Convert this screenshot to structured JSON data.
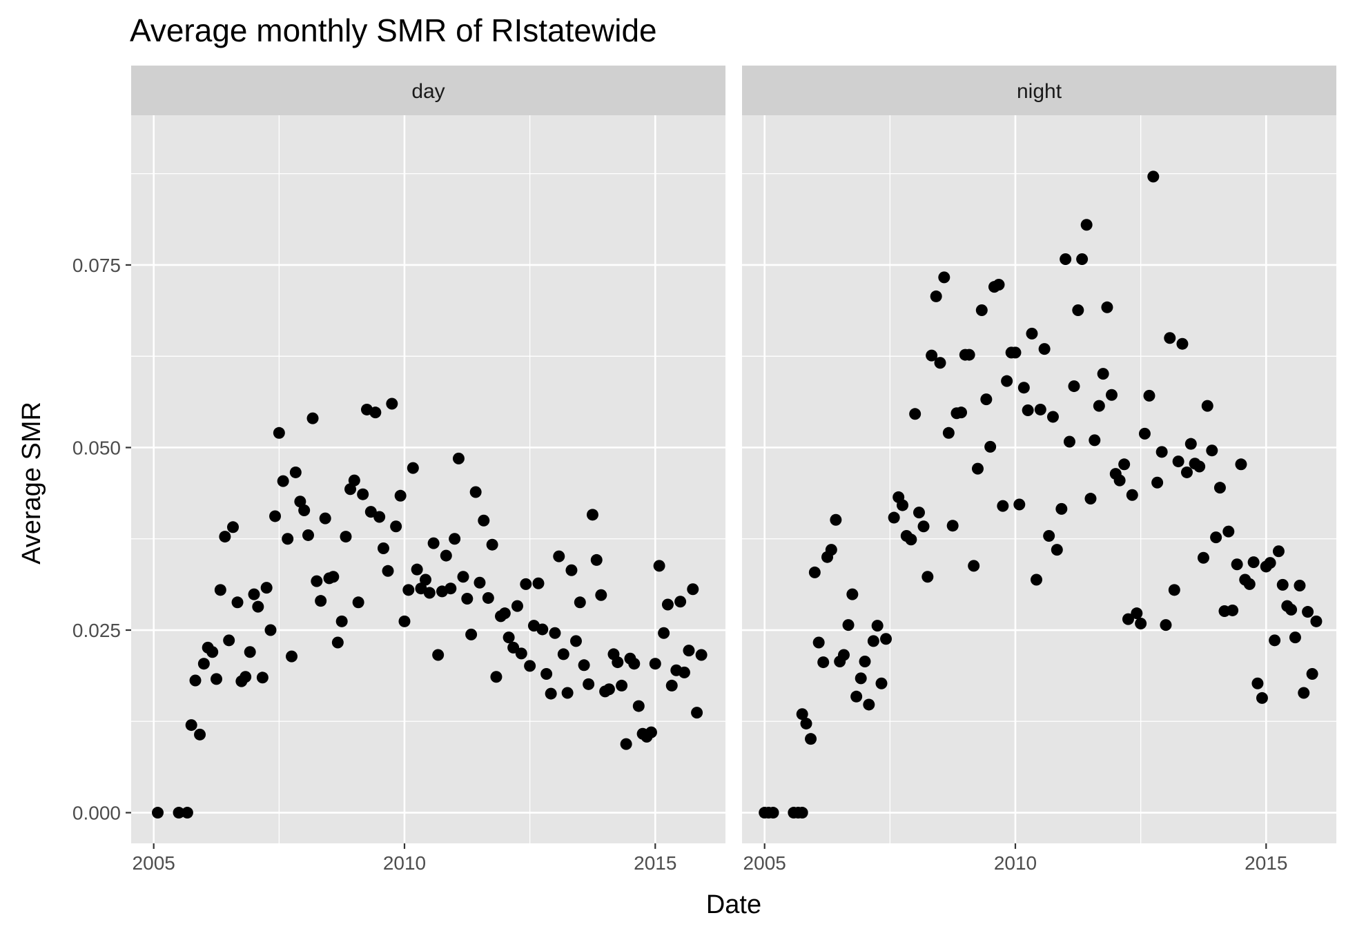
{
  "chart_data": {
    "type": "scatter",
    "title": "Average monthly SMR of RIstatewide",
    "xlabel": "Date",
    "ylabel": "Average SMR",
    "xlim": [
      2004.55,
      2016.4
    ],
    "ylim": [
      -0.0042,
      0.0955
    ],
    "xticks": [
      2005,
      2010,
      2015
    ],
    "xtick_labels": [
      "2005",
      "2010",
      "2015"
    ],
    "yticks": [
      0.0,
      0.025,
      0.05,
      0.075
    ],
    "ytick_labels": [
      "0.000",
      "0.025",
      "0.050",
      "0.075"
    ],
    "grid": true,
    "legend": "none",
    "colors": {
      "panel_bg": "#e5e5e5",
      "strip_bg": "#d0d0d0",
      "grid": "#ffffff",
      "point": "#000000",
      "tick": "#333333"
    },
    "facets": [
      {
        "name": "day",
        "points": [
          [
            2005.08,
            0.0
          ],
          [
            2005.5,
            0.0
          ],
          [
            2005.67,
            0.0
          ],
          [
            2005.75,
            0.012
          ],
          [
            2005.83,
            0.0181
          ],
          [
            2005.92,
            0.0107
          ],
          [
            2006.0,
            0.0204
          ],
          [
            2006.08,
            0.0226
          ],
          [
            2006.17,
            0.022
          ],
          [
            2006.25,
            0.0183
          ],
          [
            2006.33,
            0.0305
          ],
          [
            2006.42,
            0.0378
          ],
          [
            2006.5,
            0.0236
          ],
          [
            2006.58,
            0.0391
          ],
          [
            2006.67,
            0.0288
          ],
          [
            2006.75,
            0.018
          ],
          [
            2006.83,
            0.0186
          ],
          [
            2006.92,
            0.022
          ],
          [
            2007.0,
            0.0299
          ],
          [
            2007.08,
            0.0282
          ],
          [
            2007.17,
            0.0185
          ],
          [
            2007.25,
            0.0308
          ],
          [
            2007.33,
            0.025
          ],
          [
            2007.42,
            0.0406
          ],
          [
            2007.5,
            0.052
          ],
          [
            2007.58,
            0.0454
          ],
          [
            2007.67,
            0.0375
          ],
          [
            2007.75,
            0.0214
          ],
          [
            2007.83,
            0.0466
          ],
          [
            2007.92,
            0.0426
          ],
          [
            2008.0,
            0.0414
          ],
          [
            2008.08,
            0.038
          ],
          [
            2008.17,
            0.054
          ],
          [
            2008.25,
            0.0317
          ],
          [
            2008.33,
            0.029
          ],
          [
            2008.42,
            0.0403
          ],
          [
            2008.5,
            0.0321
          ],
          [
            2008.58,
            0.0323
          ],
          [
            2008.67,
            0.0233
          ],
          [
            2008.75,
            0.0262
          ],
          [
            2008.83,
            0.0378
          ],
          [
            2008.92,
            0.0443
          ],
          [
            2009.0,
            0.0455
          ],
          [
            2009.08,
            0.0288
          ],
          [
            2009.17,
            0.0436
          ],
          [
            2009.25,
            0.0552
          ],
          [
            2009.33,
            0.0412
          ],
          [
            2009.42,
            0.0548
          ],
          [
            2009.5,
            0.0405
          ],
          [
            2009.58,
            0.0362
          ],
          [
            2009.67,
            0.0331
          ],
          [
            2009.75,
            0.056
          ],
          [
            2009.83,
            0.0392
          ],
          [
            2009.92,
            0.0434
          ],
          [
            2010.0,
            0.0262
          ],
          [
            2010.08,
            0.0305
          ],
          [
            2010.17,
            0.0472
          ],
          [
            2010.25,
            0.0333
          ],
          [
            2010.33,
            0.0307
          ],
          [
            2010.42,
            0.0319
          ],
          [
            2010.5,
            0.0301
          ],
          [
            2010.58,
            0.0369
          ],
          [
            2010.67,
            0.0216
          ],
          [
            2010.75,
            0.0303
          ],
          [
            2010.83,
            0.0352
          ],
          [
            2010.92,
            0.0307
          ],
          [
            2011.0,
            0.0375
          ],
          [
            2011.08,
            0.0485
          ],
          [
            2011.17,
            0.0323
          ],
          [
            2011.25,
            0.0293
          ],
          [
            2011.33,
            0.0244
          ],
          [
            2011.42,
            0.0439
          ],
          [
            2011.5,
            0.0315
          ],
          [
            2011.58,
            0.04
          ],
          [
            2011.67,
            0.0294
          ],
          [
            2011.75,
            0.0367
          ],
          [
            2011.83,
            0.0186
          ],
          [
            2011.92,
            0.0269
          ],
          [
            2012.0,
            0.0273
          ],
          [
            2012.08,
            0.024
          ],
          [
            2012.17,
            0.0226
          ],
          [
            2012.25,
            0.0283
          ],
          [
            2012.33,
            0.0218
          ],
          [
            2012.42,
            0.0313
          ],
          [
            2012.5,
            0.0201
          ],
          [
            2012.58,
            0.0256
          ],
          [
            2012.67,
            0.0314
          ],
          [
            2012.75,
            0.0251
          ],
          [
            2012.83,
            0.019
          ],
          [
            2012.92,
            0.0163
          ],
          [
            2013.0,
            0.0246
          ],
          [
            2013.08,
            0.0351
          ],
          [
            2013.17,
            0.0217
          ],
          [
            2013.25,
            0.0164
          ],
          [
            2013.33,
            0.0332
          ],
          [
            2013.42,
            0.0235
          ],
          [
            2013.5,
            0.0288
          ],
          [
            2013.58,
            0.0202
          ],
          [
            2013.67,
            0.0176
          ],
          [
            2013.75,
            0.0408
          ],
          [
            2013.83,
            0.0346
          ],
          [
            2013.92,
            0.0298
          ],
          [
            2014.0,
            0.0166
          ],
          [
            2014.08,
            0.0169
          ],
          [
            2014.17,
            0.0217
          ],
          [
            2014.25,
            0.0206
          ],
          [
            2014.33,
            0.0174
          ],
          [
            2014.42,
            0.0094
          ],
          [
            2014.5,
            0.0211
          ],
          [
            2014.58,
            0.0204
          ],
          [
            2014.67,
            0.0146
          ],
          [
            2014.75,
            0.0108
          ],
          [
            2014.83,
            0.0104
          ],
          [
            2014.92,
            0.011
          ],
          [
            2015.0,
            0.0204
          ],
          [
            2015.08,
            0.0338
          ],
          [
            2015.17,
            0.0246
          ],
          [
            2015.25,
            0.0285
          ],
          [
            2015.33,
            0.0174
          ],
          [
            2015.42,
            0.0195
          ],
          [
            2015.5,
            0.0289
          ],
          [
            2015.58,
            0.0192
          ],
          [
            2015.67,
            0.0222
          ],
          [
            2015.75,
            0.0306
          ],
          [
            2015.83,
            0.0137
          ],
          [
            2015.92,
            0.0216
          ]
        ]
      },
      {
        "name": "night",
        "points": [
          [
            2005.0,
            0.0
          ],
          [
            2005.08,
            0.0
          ],
          [
            2005.17,
            0.0
          ],
          [
            2005.58,
            0.0
          ],
          [
            2005.67,
            0.0
          ],
          [
            2005.75,
            0.0
          ],
          [
            2005.75,
            0.0135
          ],
          [
            2005.83,
            0.0122
          ],
          [
            2005.92,
            0.0101
          ],
          [
            2006.0,
            0.0329
          ],
          [
            2006.08,
            0.0233
          ],
          [
            2006.17,
            0.0206
          ],
          [
            2006.25,
            0.035
          ],
          [
            2006.33,
            0.036
          ],
          [
            2006.42,
            0.0401
          ],
          [
            2006.5,
            0.0207
          ],
          [
            2006.58,
            0.0216
          ],
          [
            2006.67,
            0.0257
          ],
          [
            2006.75,
            0.0299
          ],
          [
            2006.83,
            0.0159
          ],
          [
            2006.92,
            0.0184
          ],
          [
            2007.0,
            0.0207
          ],
          [
            2007.08,
            0.0148
          ],
          [
            2007.17,
            0.0235
          ],
          [
            2007.25,
            0.0256
          ],
          [
            2007.33,
            0.0177
          ],
          [
            2007.42,
            0.0238
          ],
          [
            2007.58,
            0.0404
          ],
          [
            2007.67,
            0.0432
          ],
          [
            2007.75,
            0.0421
          ],
          [
            2007.83,
            0.0379
          ],
          [
            2007.92,
            0.0374
          ],
          [
            2008.0,
            0.0546
          ],
          [
            2008.08,
            0.0411
          ],
          [
            2008.17,
            0.0392
          ],
          [
            2008.25,
            0.0323
          ],
          [
            2008.33,
            0.0626
          ],
          [
            2008.42,
            0.0707
          ],
          [
            2008.5,
            0.0616
          ],
          [
            2008.58,
            0.0733
          ],
          [
            2008.67,
            0.052
          ],
          [
            2008.75,
            0.0393
          ],
          [
            2008.83,
            0.0547
          ],
          [
            2008.92,
            0.0548
          ],
          [
            2009.0,
            0.0627
          ],
          [
            2009.08,
            0.0627
          ],
          [
            2009.17,
            0.0338
          ],
          [
            2009.25,
            0.0471
          ],
          [
            2009.33,
            0.0688
          ],
          [
            2009.42,
            0.0566
          ],
          [
            2009.5,
            0.0501
          ],
          [
            2009.58,
            0.072
          ],
          [
            2009.67,
            0.0723
          ],
          [
            2009.75,
            0.042
          ],
          [
            2009.83,
            0.0591
          ],
          [
            2009.92,
            0.063
          ],
          [
            2010.0,
            0.063
          ],
          [
            2010.08,
            0.0422
          ],
          [
            2010.17,
            0.0582
          ],
          [
            2010.25,
            0.0551
          ],
          [
            2010.33,
            0.0656
          ],
          [
            2010.42,
            0.0319
          ],
          [
            2010.5,
            0.0552
          ],
          [
            2010.58,
            0.0635
          ],
          [
            2010.67,
            0.0379
          ],
          [
            2010.75,
            0.0542
          ],
          [
            2010.83,
            0.036
          ],
          [
            2010.92,
            0.0416
          ],
          [
            2011.0,
            0.0758
          ],
          [
            2011.08,
            0.0508
          ],
          [
            2011.17,
            0.0584
          ],
          [
            2011.25,
            0.0688
          ],
          [
            2011.33,
            0.0758
          ],
          [
            2011.42,
            0.0805
          ],
          [
            2011.5,
            0.043
          ],
          [
            2011.58,
            0.051
          ],
          [
            2011.67,
            0.0557
          ],
          [
            2011.75,
            0.0601
          ],
          [
            2011.83,
            0.0692
          ],
          [
            2011.92,
            0.0572
          ],
          [
            2012.0,
            0.0464
          ],
          [
            2012.08,
            0.0455
          ],
          [
            2012.17,
            0.0477
          ],
          [
            2012.25,
            0.0265
          ],
          [
            2012.33,
            0.0435
          ],
          [
            2012.42,
            0.0273
          ],
          [
            2012.5,
            0.0259
          ],
          [
            2012.58,
            0.0519
          ],
          [
            2012.67,
            0.0571
          ],
          [
            2012.75,
            0.0871
          ],
          [
            2012.83,
            0.0452
          ],
          [
            2012.92,
            0.0494
          ],
          [
            2013.0,
            0.0257
          ],
          [
            2013.08,
            0.065
          ],
          [
            2013.17,
            0.0305
          ],
          [
            2013.25,
            0.0481
          ],
          [
            2013.33,
            0.0642
          ],
          [
            2013.42,
            0.0466
          ],
          [
            2013.5,
            0.0505
          ],
          [
            2013.58,
            0.0478
          ],
          [
            2013.67,
            0.0474
          ],
          [
            2013.75,
            0.0349
          ],
          [
            2013.83,
            0.0557
          ],
          [
            2013.92,
            0.0496
          ],
          [
            2014.0,
            0.0377
          ],
          [
            2014.08,
            0.0445
          ],
          [
            2014.17,
            0.0276
          ],
          [
            2014.25,
            0.0385
          ],
          [
            2014.33,
            0.0277
          ],
          [
            2014.42,
            0.034
          ],
          [
            2014.5,
            0.0477
          ],
          [
            2014.58,
            0.0319
          ],
          [
            2014.67,
            0.0313
          ],
          [
            2014.75,
            0.0343
          ],
          [
            2014.83,
            0.0177
          ],
          [
            2014.92,
            0.0157
          ],
          [
            2015.0,
            0.0337
          ],
          [
            2015.08,
            0.0342
          ],
          [
            2015.17,
            0.0236
          ],
          [
            2015.25,
            0.0358
          ],
          [
            2015.33,
            0.0312
          ],
          [
            2015.42,
            0.0283
          ],
          [
            2015.5,
            0.0278
          ],
          [
            2015.58,
            0.024
          ],
          [
            2015.67,
            0.0311
          ],
          [
            2015.75,
            0.0164
          ],
          [
            2015.83,
            0.0275
          ],
          [
            2015.92,
            0.019
          ],
          [
            2016.0,
            0.0262
          ]
        ]
      }
    ]
  }
}
